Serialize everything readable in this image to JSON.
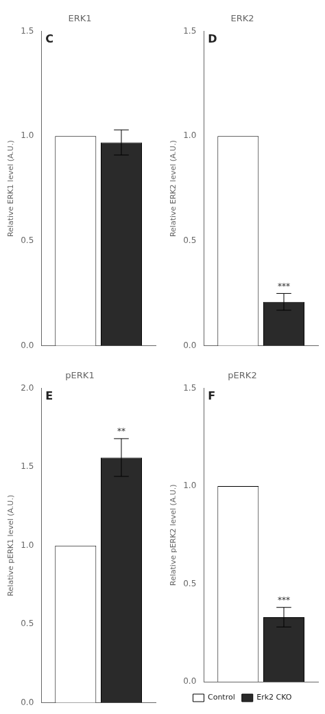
{
  "chart_data": [
    {
      "type": "bar",
      "title": "ERK1",
      "y_label": "Relative ERK1 level (A.U.)",
      "categories": [
        null
      ],
      "series": [
        {
          "name": "Control",
          "color": "white",
          "values": [
            1.0
          ],
          "errors": [
            0.0
          ]
        },
        {
          "name": "Erk2 CKO",
          "color": "#2a2a2a",
          "values": [
            0.97
          ],
          "errors": [
            0.06
          ]
        }
      ],
      "ylim": [
        0.0,
        1.5
      ],
      "yticks": [
        {
          "value": 0.0,
          "label": "0.0"
        },
        0.5,
        {
          "value": 1.0,
          "label": "1.0"
        },
        1.5
      ],
      "grid": false,
      "tick_labels": "y",
      "annotations": [
        {
          "text": "C"
        }
      ]
    },
    {
      "type": "bar",
      "title": "ERK2",
      "y_label": "Relative ERK2 level (A.U.)",
      "categories": [
        null
      ],
      "series": [
        {
          "name": "Control",
          "color": "white",
          "values": [
            1.0
          ],
          "errors": [
            0.0
          ]
        },
        {
          "name": "Erk2 CKO",
          "color": "#2a2a2a",
          "values": [
            0.21
          ],
          "errors": [
            0.04
          ]
        }
      ],
      "ylim": [
        0.0,
        1.5
      ],
      "yticks": [
        {
          "value": 0.0,
          "label": "0.0"
        },
        0.5,
        {
          "value": 1.0,
          "label": "1.0"
        },
        1.5
      ],
      "grid": false,
      "tick_labels": "y",
      "annotations": [
        {
          "text": "D"
        },
        {
          "text": "***",
          "series": "Erk2 CKO"
        }
      ]
    },
    {
      "type": "bar",
      "title": "pERK1",
      "y_label": "Relative pERK1 level (A.U.)",
      "categories": [
        null
      ],
      "series": [
        {
          "name": "Control",
          "color": "white",
          "values": [
            1.0
          ],
          "errors": [
            0.0
          ]
        },
        {
          "name": "Erk2 CKO",
          "color": "#2a2a2a",
          "values": [
            1.56
          ],
          "errors": [
            0.12
          ]
        }
      ],
      "ylim": [
        0.0,
        2.0
      ],
      "yticks": [
        {
          "value": 0.0,
          "label": "0.0"
        },
        0.5,
        {
          "value": 1.0,
          "label": "1.0"
        },
        1.5,
        {
          "value": 2.0,
          "label": "2.0"
        }
      ],
      "grid": false,
      "tick_labels": "y",
      "annotations": [
        {
          "text": "E"
        },
        {
          "text": "**",
          "series": "Erk2 CKO"
        }
      ]
    },
    {
      "type": "bar",
      "title": "pERK2",
      "y_label": "Relative pERK2 level (A.U.)",
      "categories": [
        null
      ],
      "series": [
        {
          "name": "Control",
          "color": "white",
          "values": [
            1.0
          ],
          "errors": [
            0.0
          ]
        },
        {
          "name": "Erk2 CKO",
          "color": "#2a2a2a",
          "values": [
            0.33
          ],
          "errors": [
            0.05
          ]
        }
      ],
      "ylim": [
        0.0,
        1.5
      ],
      "yticks": [
        {
          "value": 0.0,
          "label": "0.0"
        },
        0.5,
        {
          "value": 1.0,
          "label": "1.0"
        },
        1.5
      ],
      "grid": false,
      "tick_labels": "y",
      "legend": "bottom",
      "annotations": [
        {
          "text": "F"
        },
        {
          "text": "***",
          "series": "Erk2 CKO"
        }
      ]
    }
  ]
}
